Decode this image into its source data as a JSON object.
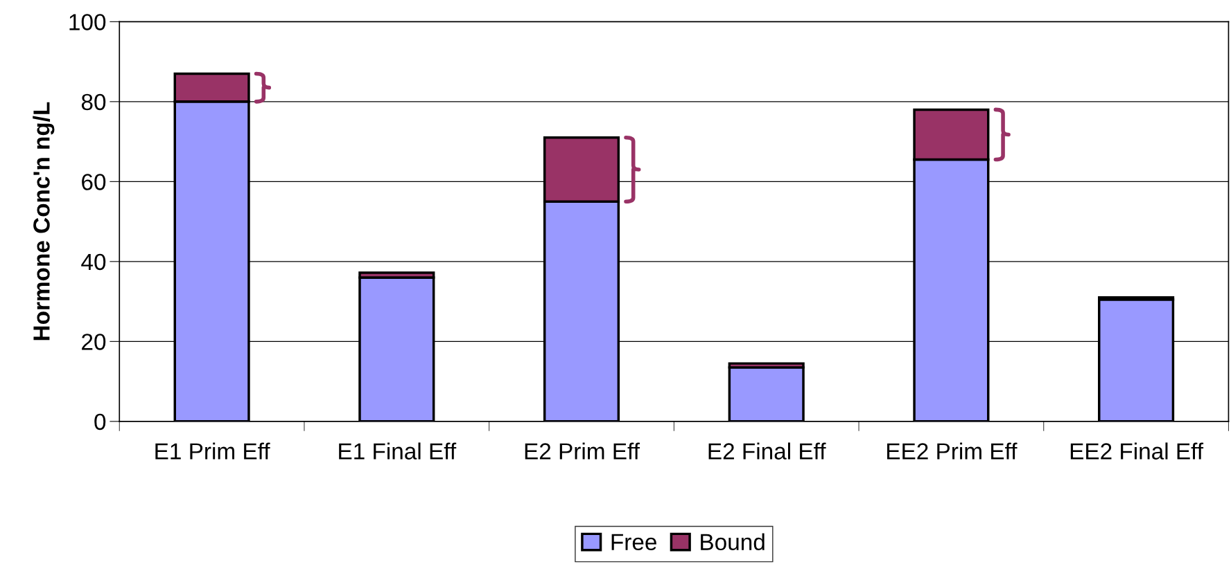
{
  "chart_data": {
    "type": "bar",
    "stacked": true,
    "ylabel": "Hormone Conc'n ng/L",
    "categories": [
      "E1 Prim Eff",
      "E1 Final Eff",
      "E2 Prim Eff",
      "E2 Final Eff",
      "EE2 Prim Eff",
      "EE2 Final Eff"
    ],
    "series": [
      {
        "name": "Free",
        "color": "#9999ff",
        "values": [
          80,
          36,
          55,
          13.5,
          65.5,
          30.5
        ]
      },
      {
        "name": "Bound",
        "color": "#993366",
        "values": [
          7,
          1.2,
          16,
          1,
          12.5,
          0.5
        ]
      }
    ],
    "ylim": [
      0,
      100
    ],
    "yticks": [
      0,
      20,
      40,
      60,
      80,
      100
    ],
    "grid": "y",
    "legend": "bottom"
  }
}
